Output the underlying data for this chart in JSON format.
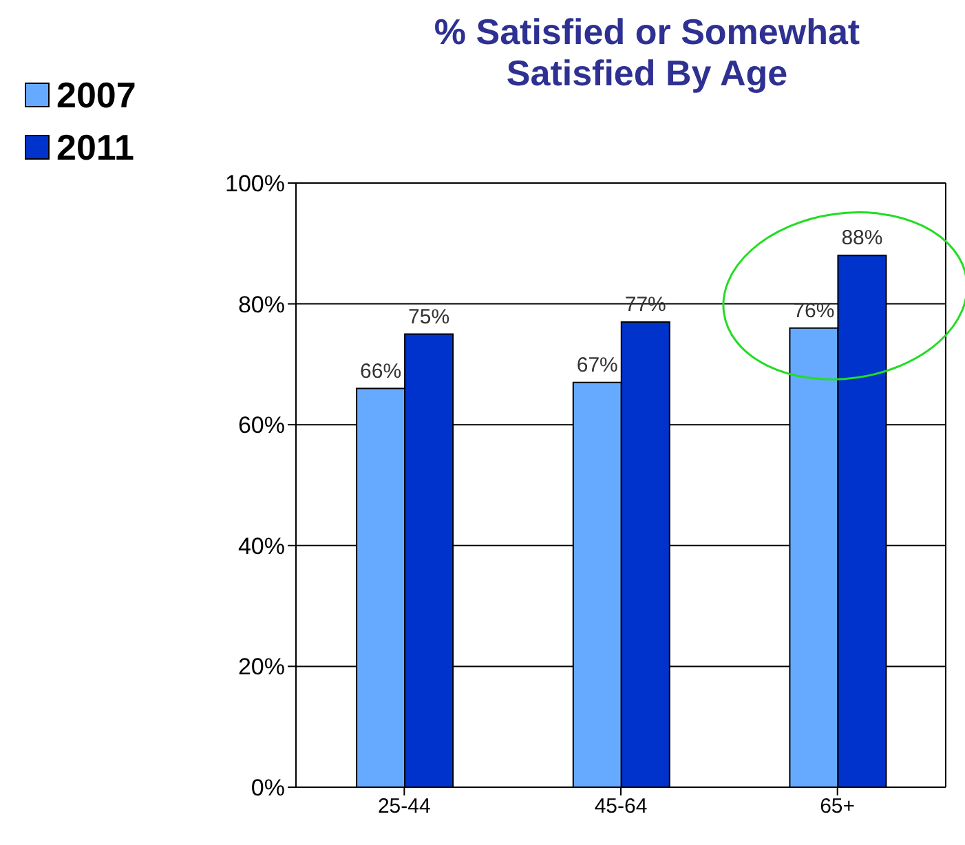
{
  "chart_data": {
    "type": "bar",
    "title": "% Satisfied or Somewhat Satisfied By Age",
    "categories": [
      "25-44",
      "45-64",
      "65+"
    ],
    "series": [
      {
        "name": "2007",
        "color": "#66aaff",
        "values": [
          66,
          67,
          76
        ],
        "value_labels": [
          "66%",
          "67%",
          "76%"
        ]
      },
      {
        "name": "2011",
        "color": "#0033cc",
        "values": [
          75,
          77,
          88
        ],
        "value_labels": [
          "75%",
          "77%",
          "88%"
        ]
      }
    ],
    "ylim": [
      0,
      100
    ],
    "yticks": [
      {
        "value": 0,
        "label": "0%"
      },
      {
        "value": 20,
        "label": "20%"
      },
      {
        "value": 40,
        "label": "40%"
      },
      {
        "value": 60,
        "label": "60%"
      },
      {
        "value": 80,
        "label": "80%"
      },
      {
        "value": 100,
        "label": "100%"
      }
    ],
    "grid": "y",
    "legend": "top left"
  }
}
